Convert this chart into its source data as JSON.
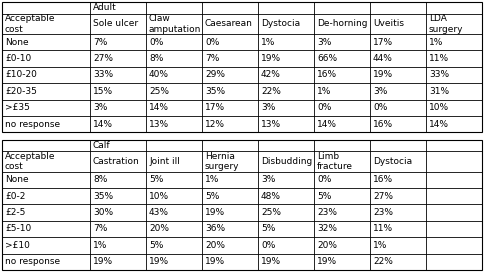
{
  "adult_header": "Adult",
  "adult_col_header": "Acceptable\ncost",
  "adult_columns": [
    "Sole ulcer",
    "Claw\namputation",
    "Caesarean",
    "Dystocia",
    "De-horning",
    "Uveitis",
    "LDA\nsurgery"
  ],
  "adult_rows": [
    "None",
    "£0-10",
    "£10-20",
    "£20-35",
    ">£35",
    "no response"
  ],
  "adult_data": [
    [
      "7%",
      "0%",
      "0%",
      "1%",
      "3%",
      "17%",
      "1%"
    ],
    [
      "27%",
      "8%",
      "7%",
      "19%",
      "66%",
      "44%",
      "11%"
    ],
    [
      "33%",
      "40%",
      "29%",
      "42%",
      "16%",
      "19%",
      "33%"
    ],
    [
      "15%",
      "25%",
      "35%",
      "22%",
      "1%",
      "3%",
      "31%"
    ],
    [
      "3%",
      "14%",
      "17%",
      "3%",
      "0%",
      "0%",
      "10%"
    ],
    [
      "14%",
      "13%",
      "12%",
      "13%",
      "14%",
      "16%",
      "14%"
    ]
  ],
  "calf_header": "Calf",
  "calf_col_header": "Acceptable\ncost",
  "calf_columns": [
    "Castration",
    "Joint ill",
    "Hernia\nsurgery",
    "Disbudding",
    "Limb\nfracture",
    "Dystocia"
  ],
  "calf_rows": [
    "None",
    "£0-2",
    "£2-5",
    "£5-10",
    ">£10",
    "no response"
  ],
  "calf_data": [
    [
      "8%",
      "5%",
      "1%",
      "3%",
      "0%",
      "16%"
    ],
    [
      "35%",
      "10%",
      "5%",
      "48%",
      "5%",
      "27%"
    ],
    [
      "30%",
      "43%",
      "19%",
      "25%",
      "23%",
      "23%"
    ],
    [
      "7%",
      "20%",
      "36%",
      "5%",
      "32%",
      "11%"
    ],
    [
      "1%",
      "5%",
      "20%",
      "0%",
      "20%",
      "1%"
    ],
    [
      "19%",
      "19%",
      "19%",
      "19%",
      "19%",
      "22%"
    ]
  ],
  "font_size": 6.5,
  "bg_color": "#ffffff"
}
